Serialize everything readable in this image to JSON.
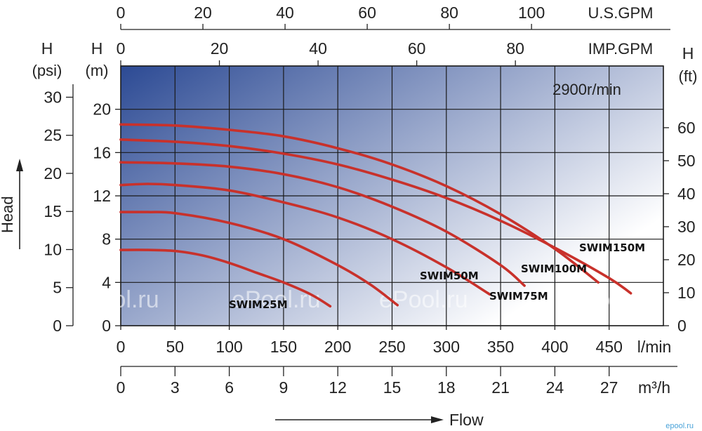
{
  "chart_data": {
    "type": "line",
    "speed_label": "2900r/min",
    "flow_label": "Flow",
    "head_label": "Head",
    "x_axes": [
      {
        "id": "lmin",
        "unit": "l/min",
        "ticks": [
          0,
          50,
          100,
          150,
          200,
          250,
          300,
          350,
          400,
          450
        ],
        "range": [
          0,
          500
        ]
      },
      {
        "id": "m3h",
        "unit": "m³/h",
        "ticks": [
          0,
          3,
          6,
          9,
          12,
          15,
          18,
          21,
          24,
          27
        ],
        "range": [
          0,
          30
        ]
      },
      {
        "id": "usgpm",
        "unit": "U.S.GPM",
        "ticks": [
          0,
          20,
          40,
          60,
          80,
          100
        ],
        "range": [
          0,
          132.1
        ]
      },
      {
        "id": "impgpm",
        "unit": "IMP.GPM",
        "ticks": [
          0,
          20,
          40,
          60,
          80
        ],
        "range": [
          0,
          110
        ]
      }
    ],
    "y_axes": [
      {
        "id": "m",
        "title": "H",
        "unit": "(m)",
        "ticks": [
          0,
          4,
          8,
          12,
          16,
          20
        ],
        "range": [
          0,
          24
        ]
      },
      {
        "id": "psi",
        "title": "H",
        "unit": "(psi)",
        "ticks": [
          0,
          5,
          10,
          15,
          20,
          25,
          30
        ],
        "range": [
          0,
          34.1
        ]
      },
      {
        "id": "ft",
        "title": "H",
        "unit": "(ft)",
        "ticks": [
          0,
          10,
          20,
          30,
          40,
          50,
          60
        ],
        "range": [
          0,
          78.7
        ]
      }
    ],
    "grid": true,
    "series": [
      {
        "name": "SWIM25M",
        "x": [
          0,
          25,
          50,
          75,
          100,
          125,
          150,
          175,
          193
        ],
        "y": [
          7.0,
          7.0,
          6.9,
          6.5,
          5.8,
          4.9,
          4.0,
          2.9,
          1.8
        ]
      },
      {
        "name": "SWIM50M",
        "x": [
          0,
          25,
          50,
          100,
          150,
          200,
          230,
          255
        ],
        "y": [
          10.5,
          10.5,
          10.4,
          9.5,
          8.0,
          5.6,
          3.8,
          1.9
        ]
      },
      {
        "name": "SWIM75M",
        "x": [
          0,
          25,
          50,
          100,
          150,
          200,
          250,
          300,
          340
        ],
        "y": [
          13.0,
          13.1,
          13.0,
          12.5,
          11.4,
          10.0,
          8.0,
          5.4,
          2.9
        ]
      },
      {
        "name": "SWIM100M",
        "x": [
          0,
          50,
          100,
          150,
          200,
          250,
          300,
          350,
          372
        ],
        "y": [
          15.1,
          15.0,
          14.7,
          14.0,
          12.8,
          11.0,
          8.7,
          5.6,
          3.7
        ]
      },
      {
        "name": "SWIM150M",
        "x": [
          0,
          50,
          100,
          150,
          200,
          250,
          300,
          350,
          400,
          450,
          470
        ],
        "y": [
          17.2,
          17.0,
          16.6,
          15.9,
          14.9,
          13.5,
          11.8,
          9.7,
          7.2,
          4.4,
          3.0
        ]
      },
      {
        "name": "",
        "x": [
          0,
          50,
          100,
          150,
          200,
          250,
          300,
          350,
          400,
          440
        ],
        "y": [
          18.6,
          18.5,
          18.1,
          17.5,
          16.4,
          14.9,
          12.9,
          10.3,
          7.1,
          4.0
        ]
      }
    ]
  },
  "watermark": "ePool.ru",
  "corner_mark": "epool.ru",
  "colors": {
    "curve": "#c8312b",
    "plot_bg_dark": "#2c4a94",
    "plot_bg_light": "#ffffff",
    "grid": "#1a1a1a",
    "corner_mark": "#4aa3d9"
  }
}
